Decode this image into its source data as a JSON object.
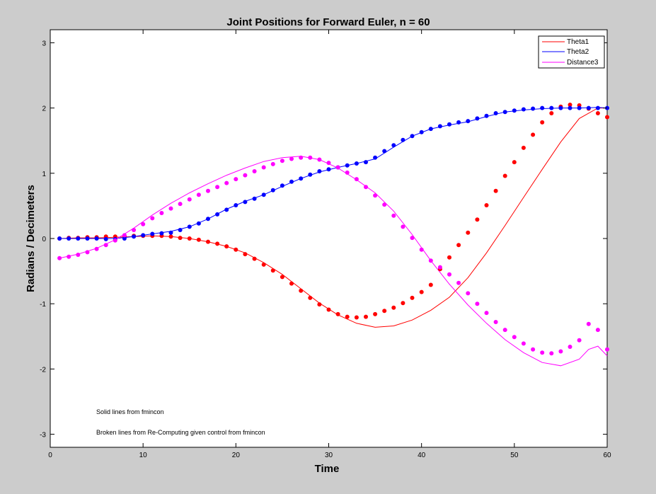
{
  "chart_data": {
    "type": "line",
    "title": "Joint Positions for Forward Euler, n = 60",
    "xlabel": "Time",
    "ylabel": "Radians / Decimeters",
    "xlim": [
      0,
      60
    ],
    "ylim": [
      -3.2,
      3.2
    ],
    "xticks": [
      0,
      10,
      20,
      30,
      40,
      50,
      60
    ],
    "yticks": [
      -3,
      -2,
      -1,
      0,
      1,
      2,
      3
    ],
    "grid": false,
    "legend_position": "top-right",
    "annotations": [
      "Solid lines from fmincon",
      "Broken lines from Re-Computing given control from fmincon"
    ],
    "series": [
      {
        "name": "Theta1",
        "color": "#ff0000",
        "style": "solid",
        "x": [
          1,
          3,
          5,
          7,
          9,
          11,
          13,
          15,
          17,
          19,
          21,
          23,
          25,
          27,
          29,
          31,
          33,
          35,
          37,
          39,
          41,
          43,
          45,
          47,
          49,
          51,
          53,
          55,
          57,
          59,
          60
        ],
        "y": [
          0.0,
          0.01,
          0.01,
          0.02,
          0.03,
          0.04,
          0.03,
          0.0,
          -0.05,
          -0.12,
          -0.22,
          -0.37,
          -0.55,
          -0.77,
          -0.99,
          -1.17,
          -1.3,
          -1.36,
          -1.34,
          -1.25,
          -1.1,
          -0.9,
          -0.6,
          -0.22,
          0.2,
          0.63,
          1.06,
          1.48,
          1.84,
          2.0,
          2.0
        ]
      },
      {
        "name": "Theta2",
        "color": "#0000ff",
        "style": "solid",
        "x": [
          1,
          3,
          5,
          7,
          9,
          11,
          13,
          15,
          17,
          19,
          21,
          23,
          25,
          27,
          29,
          31,
          33,
          35,
          37,
          39,
          41,
          43,
          45,
          47,
          49,
          51,
          53,
          55,
          57,
          59,
          60
        ],
        "y": [
          0.0,
          0.0,
          0.0,
          0.0,
          0.03,
          0.07,
          0.11,
          0.18,
          0.3,
          0.45,
          0.57,
          0.67,
          0.8,
          0.92,
          1.02,
          1.09,
          1.15,
          1.22,
          1.4,
          1.57,
          1.68,
          1.74,
          1.79,
          1.87,
          1.94,
          1.97,
          1.99,
          2.0,
          2.0,
          2.01,
          2.0
        ]
      },
      {
        "name": "Distance3",
        "color": "#ff00ff",
        "style": "solid",
        "x": [
          1,
          3,
          5,
          7,
          9,
          11,
          13,
          15,
          17,
          19,
          21,
          23,
          25,
          27,
          29,
          31,
          33,
          35,
          37,
          39,
          41,
          43,
          45,
          47,
          49,
          51,
          53,
          55,
          57,
          58,
          59,
          60
        ],
        "y": [
          -0.3,
          -0.24,
          -0.15,
          -0.02,
          0.16,
          0.36,
          0.54,
          0.7,
          0.84,
          0.97,
          1.08,
          1.18,
          1.24,
          1.26,
          1.21,
          1.08,
          0.9,
          0.7,
          0.42,
          0.06,
          -0.34,
          -0.7,
          -1.02,
          -1.3,
          -1.55,
          -1.75,
          -1.9,
          -1.95,
          -1.85,
          -1.7,
          -1.65,
          -1.8
        ]
      },
      {
        "name": "Theta1",
        "color": "#ff0000",
        "style": "dotted",
        "x": [
          1,
          2,
          3,
          4,
          5,
          6,
          7,
          8,
          9,
          10,
          11,
          12,
          13,
          14,
          15,
          16,
          17,
          18,
          19,
          20,
          21,
          22,
          23,
          24,
          25,
          26,
          27,
          28,
          29,
          30,
          31,
          32,
          33,
          34,
          35,
          36,
          37,
          38,
          39,
          40,
          41,
          42,
          43,
          44,
          45,
          46,
          47,
          48,
          49,
          50,
          51,
          52,
          53,
          54,
          55,
          56,
          57,
          58,
          59,
          60
        ],
        "y": [
          0,
          0.01,
          0.01,
          0.02,
          0.02,
          0.03,
          0.03,
          0.04,
          0.04,
          0.04,
          0.04,
          0.04,
          0.03,
          0.01,
          0,
          -0.02,
          -0.05,
          -0.08,
          -0.12,
          -0.17,
          -0.24,
          -0.31,
          -0.4,
          -0.49,
          -0.59,
          -0.69,
          -0.8,
          -0.91,
          -1.01,
          -1.09,
          -1.16,
          -1.2,
          -1.21,
          -1.2,
          -1.16,
          -1.11,
          -1.06,
          -0.99,
          -0.91,
          -0.82,
          -0.71,
          -0.47,
          -0.29,
          -0.1,
          0.09,
          0.29,
          0.51,
          0.73,
          0.96,
          1.17,
          1.39,
          1.59,
          1.78,
          1.92,
          2.02,
          2.05,
          2.04,
          1.99,
          1.92,
          1.86
        ]
      },
      {
        "name": "Theta2",
        "color": "#0000ff",
        "style": "dotted",
        "x": [
          1,
          2,
          3,
          4,
          5,
          6,
          7,
          8,
          9,
          10,
          11,
          12,
          13,
          14,
          15,
          16,
          17,
          18,
          19,
          20,
          21,
          22,
          23,
          24,
          25,
          26,
          27,
          28,
          29,
          30,
          31,
          32,
          33,
          34,
          35,
          36,
          37,
          38,
          39,
          40,
          41,
          42,
          43,
          44,
          45,
          46,
          47,
          48,
          49,
          50,
          51,
          52,
          53,
          54,
          55,
          56,
          57,
          58,
          59,
          60
        ],
        "y": [
          0,
          0,
          0,
          0,
          0,
          -0.01,
          -0.01,
          0,
          0.03,
          0.05,
          0.07,
          0.08,
          0.09,
          0.13,
          0.18,
          0.23,
          0.3,
          0.37,
          0.44,
          0.51,
          0.56,
          0.61,
          0.67,
          0.74,
          0.81,
          0.87,
          0.92,
          0.98,
          1.03,
          1.06,
          1.09,
          1.12,
          1.15,
          1.17,
          1.24,
          1.34,
          1.43,
          1.51,
          1.57,
          1.63,
          1.68,
          1.72,
          1.75,
          1.78,
          1.8,
          1.84,
          1.88,
          1.92,
          1.94,
          1.96,
          1.98,
          1.99,
          2.0,
          2.0,
          2.0,
          2.0,
          2.0,
          2.0,
          2.0,
          2.0
        ]
      },
      {
        "name": "Distance3",
        "color": "#ff00ff",
        "style": "dotted",
        "x": [
          1,
          2,
          3,
          4,
          5,
          6,
          7,
          8,
          9,
          10,
          11,
          12,
          13,
          14,
          15,
          16,
          17,
          18,
          19,
          20,
          21,
          22,
          23,
          24,
          25,
          26,
          27,
          28,
          29,
          30,
          31,
          32,
          33,
          34,
          35,
          36,
          37,
          38,
          39,
          40,
          41,
          42,
          43,
          44,
          45,
          46,
          47,
          48,
          49,
          50,
          51,
          52,
          53,
          54,
          55,
          56,
          57,
          58,
          59,
          60
        ],
        "y": [
          -0.3,
          -0.28,
          -0.25,
          -0.21,
          -0.16,
          -0.1,
          -0.03,
          0.05,
          0.13,
          0.22,
          0.31,
          0.39,
          0.46,
          0.53,
          0.6,
          0.67,
          0.73,
          0.79,
          0.85,
          0.91,
          0.97,
          1.03,
          1.09,
          1.14,
          1.19,
          1.22,
          1.24,
          1.24,
          1.21,
          1.16,
          1.09,
          1.01,
          0.91,
          0.79,
          0.66,
          0.52,
          0.35,
          0.18,
          0.01,
          -0.17,
          -0.34,
          -0.44,
          -0.55,
          -0.68,
          -0.84,
          -1.0,
          -1.14,
          -1.28,
          -1.4,
          -1.51,
          -1.61,
          -1.7,
          -1.75,
          -1.76,
          -1.73,
          -1.66,
          -1.56,
          -1.31,
          -1.4,
          -1.7
        ]
      }
    ]
  }
}
